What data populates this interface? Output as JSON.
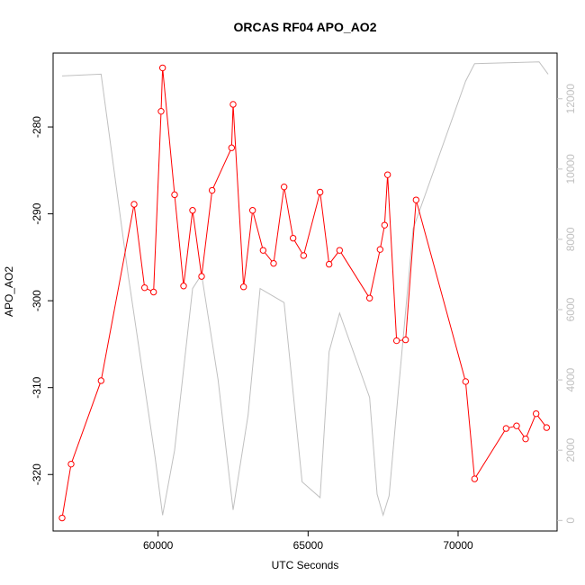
{
  "chart_data": {
    "type": "line",
    "title": "ORCAS RF04 APO_AO2",
    "xlabel": "UTC Seconds",
    "ylabel": "APO_AO2",
    "xlim": [
      56500,
      73300
    ],
    "ylim": [
      -326.5,
      -271.5
    ],
    "y2lim": [
      -300,
      13300
    ],
    "x_ticks": [
      60000,
      65000,
      70000
    ],
    "y_ticks": [
      -320,
      -310,
      -300,
      -290,
      -280
    ],
    "y2_ticks": [
      0,
      2000,
      4000,
      6000,
      8000,
      10000,
      12000
    ],
    "colors": {
      "primary": "#ff0000",
      "secondary": "#c0c0c0"
    },
    "series": [
      {
        "role": "primary",
        "style": "line-points",
        "x": [
          56800,
          57100,
          58100,
          59200,
          59550,
          59850,
          60100,
          60150,
          60550,
          60850,
          61150,
          61450,
          61800,
          62450,
          62500,
          62850,
          63150,
          63500,
          63850,
          64200,
          64500,
          64850,
          65400,
          65700,
          66050,
          67050,
          67400,
          67550,
          67650,
          67950,
          68250,
          68600,
          70250,
          70550,
          71600,
          71950,
          72250,
          72600,
          72950
        ],
        "y": [
          -325.0,
          -318.8,
          -309.2,
          -288.9,
          -298.5,
          -299.0,
          -278.2,
          -273.2,
          -287.8,
          -298.3,
          -289.6,
          -297.2,
          -287.3,
          -282.4,
          -277.4,
          -298.4,
          -289.6,
          -294.2,
          -295.7,
          -286.9,
          -292.8,
          -294.8,
          -287.5,
          -295.8,
          -294.2,
          -299.7,
          -294.1,
          -291.3,
          -285.5,
          -304.6,
          -304.5,
          -288.4,
          -309.3,
          -320.5,
          -314.7,
          -314.4,
          -315.9,
          -313.0,
          -314.6
        ]
      },
      {
        "role": "secondary",
        "style": "line",
        "x": [
          56800,
          58100,
          59000,
          59900,
          60150,
          60550,
          61150,
          61450,
          62000,
          62500,
          63000,
          63400,
          64200,
          64800,
          65400,
          65700,
          66050,
          67050,
          67300,
          67500,
          67700,
          68000,
          68500,
          70250,
          70550,
          72700,
          73000
        ],
        "y": [
          12650,
          12700,
          7000,
          1800,
          150,
          2000,
          6600,
          7000,
          4000,
          300,
          3000,
          6600,
          6200,
          1100,
          650,
          4800,
          5900,
          3500,
          750,
          150,
          700,
          3600,
          8300,
          12500,
          13000,
          13050,
          12700
        ]
      }
    ]
  }
}
